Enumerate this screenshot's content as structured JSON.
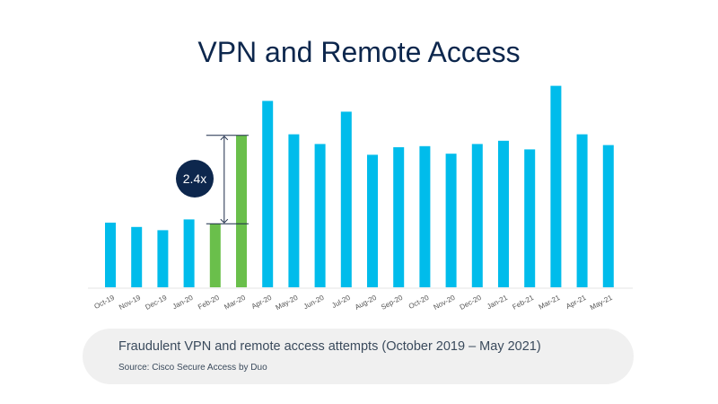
{
  "title": "VPN and Remote Access",
  "caption": {
    "main": "Fraudulent VPN and remote access attempts (October 2019 – May 2021)",
    "source": "Source: Cisco Secure Access by Duo"
  },
  "colors": {
    "bar": "#00bceb",
    "highlight": "#6abf4b",
    "badge": "#0d274d",
    "title": "#0d274d"
  },
  "chart_data": {
    "type": "bar",
    "title": "VPN and Remote Access",
    "categories": [
      "Oct-19",
      "Nov-19",
      "Dec-19",
      "Jan-20",
      "Feb-20",
      "Mar-20",
      "Apr-20",
      "May-20",
      "Jun-20",
      "Jul-20",
      "Aug-20",
      "Sep-20",
      "Oct-20",
      "Nov-20",
      "Dec-20",
      "Jan-21",
      "Feb-21",
      "Mar-21",
      "Apr-21",
      "May-21"
    ],
    "values": [
      30,
      28,
      26.5,
      31.5,
      29.5,
      70.5,
      86.5,
      71,
      66.5,
      81.5,
      61.5,
      65,
      65.5,
      62,
      66.5,
      68,
      64,
      93.5,
      71,
      66
    ],
    "highlighted": [
      "Feb-20",
      "Mar-20"
    ],
    "ylim": [
      0,
      100
    ],
    "xlabel": "",
    "ylabel": "",
    "annotation": {
      "label": "2.4x",
      "from": "Feb-20",
      "to": "Mar-20"
    },
    "grid": false
  }
}
